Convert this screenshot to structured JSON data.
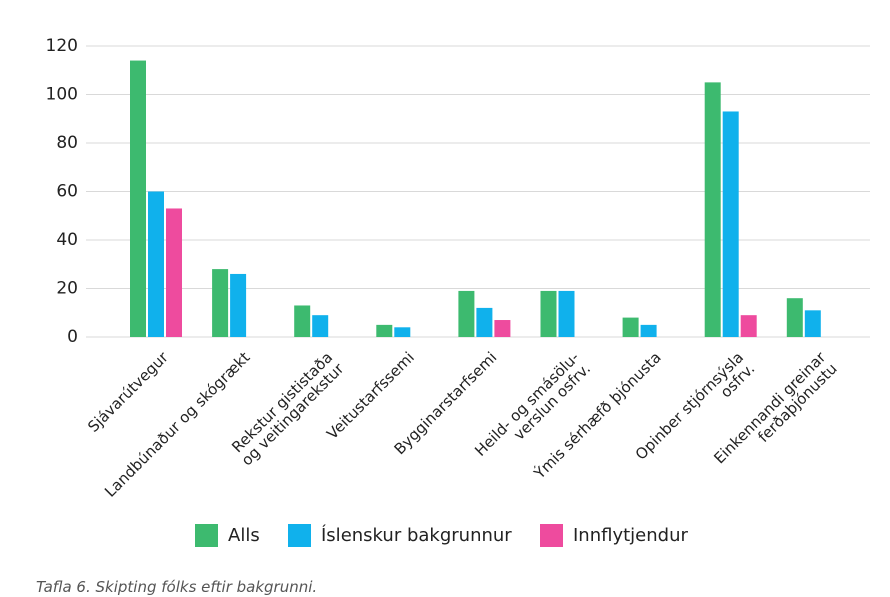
{
  "chart_data": {
    "type": "bar",
    "categories": [
      "Sjávarútvegur",
      "Landbúnaður og skógrækt",
      "Rekstur gististaða\nog veitingarekstur",
      "Veitustarfssemi",
      "Bygginarstarfsemi",
      "Heild- og smásölu-\nverslun osfrv.",
      "Ýmis sérhæfð þjónusta",
      "Opinber stjórnsýsla\nosfrv.",
      "Einkennandi greinar\nferðaþjónustu"
    ],
    "series": [
      {
        "name": "Alls",
        "color": "#3dba6f",
        "values": [
          114,
          28,
          13,
          5,
          19,
          19,
          8,
          105,
          16
        ]
      },
      {
        "name": "Íslenskur bakgrunnur",
        "color": "#10b1ec",
        "values": [
          60,
          26,
          9,
          4,
          12,
          19,
          5,
          93,
          11
        ]
      },
      {
        "name": "Innflytjendur",
        "color": "#ee4b9e",
        "values": [
          53,
          null,
          null,
          null,
          7,
          null,
          null,
          9,
          null
        ]
      }
    ],
    "ylim": [
      0,
      120
    ],
    "yticks": [
      0,
      20,
      40,
      60,
      80,
      100,
      120
    ],
    "grid": true,
    "caption": "Tafla 6. Skipting fólks eftir bakgrunni."
  }
}
